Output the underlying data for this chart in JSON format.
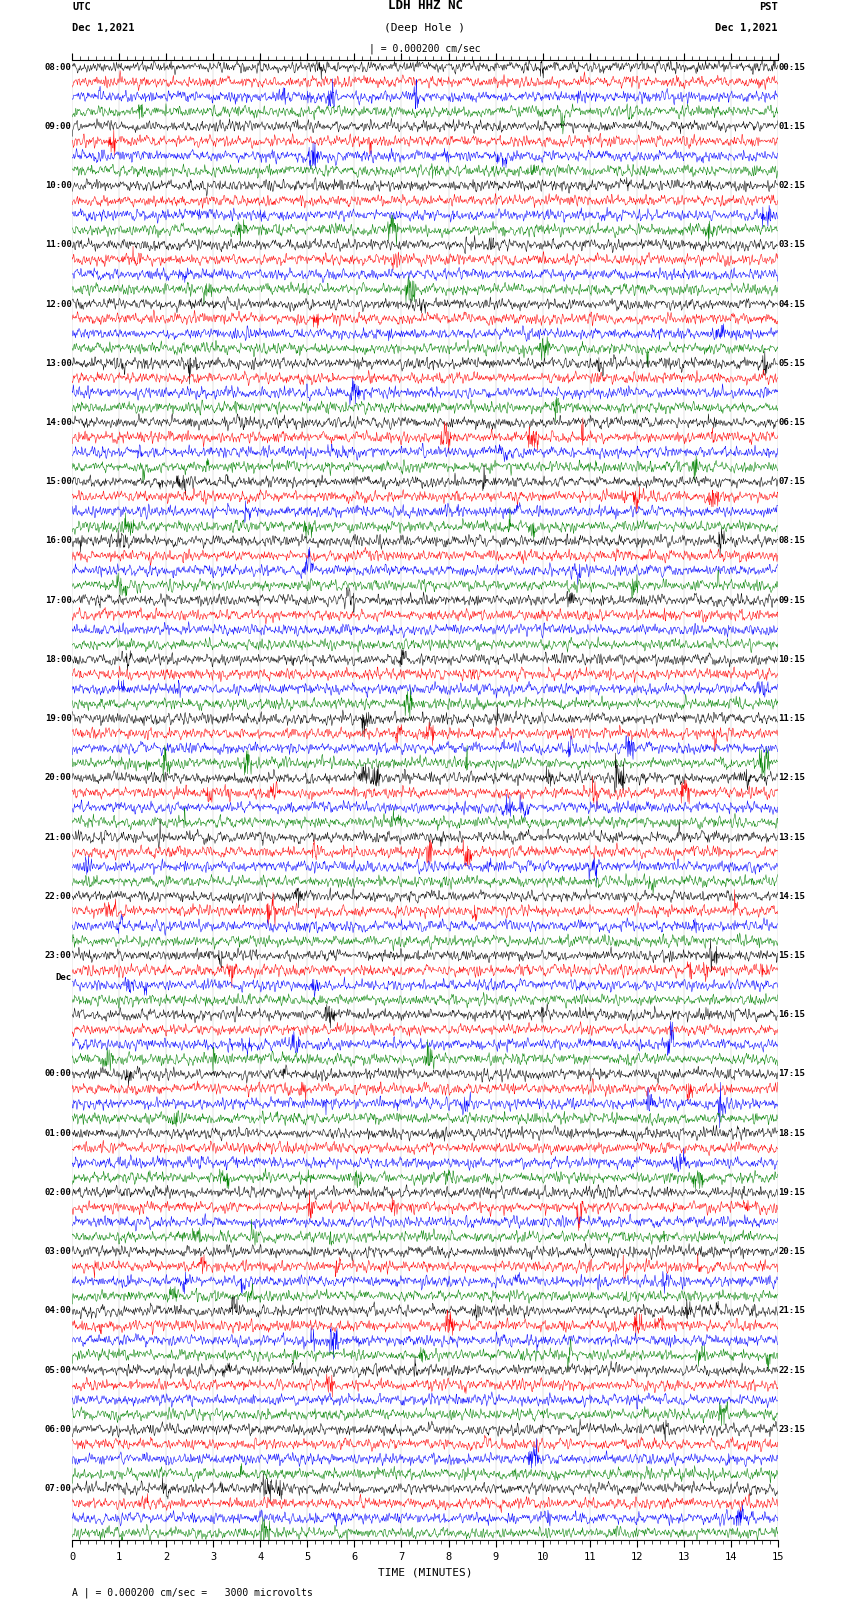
{
  "title_line1": "LDH HHZ NC",
  "title_line2": "(Deep Hole )",
  "scale_label": "| = 0.000200 cm/sec",
  "utc_label": "UTC",
  "utc_date": "Dec 1,2021",
  "pst_label": "PST",
  "pst_date": "Dec 1,2021",
  "bottom_label": "A | = 0.000200 cm/sec =   3000 microvolts",
  "xlabel": "TIME (MINUTES)",
  "left_times_major": [
    [
      "08:00",
      0
    ],
    [
      "09:00",
      1
    ],
    [
      "10:00",
      2
    ],
    [
      "11:00",
      3
    ],
    [
      "12:00",
      4
    ],
    [
      "13:00",
      5
    ],
    [
      "14:00",
      6
    ],
    [
      "15:00",
      7
    ],
    [
      "16:00",
      8
    ],
    [
      "17:00",
      9
    ],
    [
      "18:00",
      10
    ],
    [
      "19:00",
      11
    ],
    [
      "20:00",
      12
    ],
    [
      "21:00",
      13
    ],
    [
      "22:00",
      14
    ],
    [
      "23:00",
      15
    ],
    [
      "00:00",
      17
    ],
    [
      "01:00",
      18
    ],
    [
      "02:00",
      19
    ],
    [
      "03:00",
      20
    ],
    [
      "04:00",
      21
    ],
    [
      "05:00",
      22
    ],
    [
      "06:00",
      23
    ],
    [
      "07:00",
      24
    ]
  ],
  "dec2_group": 16,
  "right_times_major": [
    [
      "00:15",
      0
    ],
    [
      "01:15",
      1
    ],
    [
      "02:15",
      2
    ],
    [
      "03:15",
      3
    ],
    [
      "04:15",
      4
    ],
    [
      "05:15",
      5
    ],
    [
      "06:15",
      6
    ],
    [
      "07:15",
      7
    ],
    [
      "08:15",
      8
    ],
    [
      "09:15",
      9
    ],
    [
      "10:15",
      10
    ],
    [
      "11:15",
      11
    ],
    [
      "12:15",
      12
    ],
    [
      "13:15",
      13
    ],
    [
      "14:15",
      14
    ],
    [
      "15:15",
      15
    ],
    [
      "16:15",
      16
    ],
    [
      "17:15",
      17
    ],
    [
      "18:15",
      18
    ],
    [
      "19:15",
      19
    ],
    [
      "20:15",
      20
    ],
    [
      "21:15",
      21
    ],
    [
      "22:15",
      22
    ],
    [
      "23:15",
      23
    ]
  ],
  "colors": [
    "black",
    "red",
    "blue",
    "green"
  ],
  "n_groups": 25,
  "n_points": 1800,
  "time_xlim": [
    0,
    15
  ],
  "xticks_major": [
    0,
    1,
    2,
    3,
    4,
    5,
    6,
    7,
    8,
    9,
    10,
    11,
    12,
    13,
    14,
    15
  ],
  "background_color": "white",
  "trace_amplitude": 0.28,
  "seed": 42
}
